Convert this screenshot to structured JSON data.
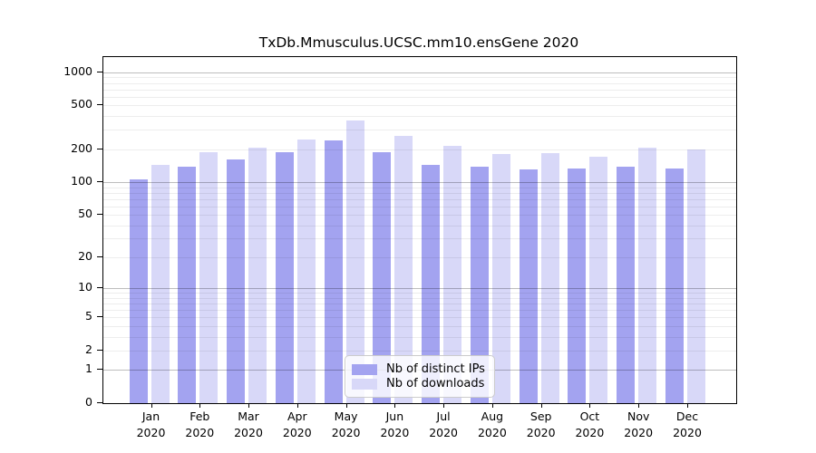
{
  "chart_data": {
    "type": "bar",
    "title": "TxDb.Mmusculus.UCSC.mm10.ensGene 2020",
    "categories": [
      "Jan",
      "Feb",
      "Mar",
      "Apr",
      "May",
      "Jun",
      "Jul",
      "Aug",
      "Sep",
      "Oct",
      "Nov",
      "Dec"
    ],
    "x_second_line": "2020",
    "series": [
      {
        "name": "Nb of distinct IPs",
        "color": "#a3a3f0",
        "values": [
          106,
          139,
          160,
          186,
          240,
          186,
          145,
          139,
          130,
          133,
          139,
          132
        ]
      },
      {
        "name": "Nb of downloads",
        "color": "#d8d8f8",
        "values": [
          143,
          186,
          208,
          243,
          365,
          264,
          215,
          181,
          185,
          172,
          205,
          199
        ]
      }
    ],
    "y_ticks": [
      0,
      1,
      2,
      5,
      10,
      20,
      50,
      100,
      200,
      500,
      1000
    ],
    "y_minor_gridlines": [
      2,
      3,
      4,
      5,
      6,
      7,
      8,
      9,
      20,
      30,
      40,
      50,
      60,
      70,
      80,
      90,
      200,
      300,
      400,
      500,
      600,
      700,
      800,
      900
    ],
    "y_major_gridlines": [
      1,
      10,
      100,
      1000
    ],
    "y_scale": "log1p",
    "ylim": [
      0,
      1380
    ],
    "xlabel": "",
    "ylabel": "",
    "grid": true,
    "legend_position": "lower center",
    "colors": {
      "axis": "#000000",
      "major_grid": "#bdbdbd",
      "minor_grid": "#ededed",
      "legend_border": "#cccccc"
    }
  }
}
